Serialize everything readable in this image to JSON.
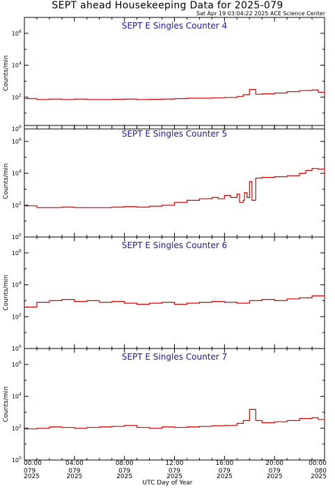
{
  "header": {
    "title": "SEPT ahead Housekeeping Data for 2025-079",
    "timestamp": "Sat Apr 19 03:04:22 2025 ACE Science Center"
  },
  "colors": {
    "series": "#d40000",
    "panel_title": "#1a1a9c",
    "axis": "#000000"
  },
  "chart_data": {
    "type": "line",
    "step": true,
    "xlabel": "UTC Day of Year",
    "ylabel": "Counts/min",
    "x_unit": "hours",
    "xlim": [
      0,
      24
    ],
    "yscale": "log",
    "ylim": [
      1,
      10000000
    ],
    "yticks": [
      {
        "value": 1,
        "base": "10",
        "exp": "0"
      },
      {
        "value": 100,
        "base": "10",
        "exp": "2"
      },
      {
        "value": 10000,
        "base": "10",
        "exp": "4"
      },
      {
        "value": 1000000,
        "base": "10",
        "exp": "6"
      }
    ],
    "xticks": [
      {
        "value": 0,
        "time": "00:00",
        "doy": "079",
        "year": "2025"
      },
      {
        "value": 4,
        "time": "04:00",
        "doy": "079",
        "year": "2025"
      },
      {
        "value": 8,
        "time": "08:00",
        "doy": "079",
        "year": "2025"
      },
      {
        "value": 12,
        "time": "12:00",
        "doy": "079",
        "year": "2025"
      },
      {
        "value": 16,
        "time": "16:00",
        "doy": "079",
        "year": "2025"
      },
      {
        "value": 20,
        "time": "20:00",
        "doy": "079",
        "year": "2025"
      },
      {
        "value": 24,
        "time": "00:00",
        "doy": "080",
        "year": "2025"
      }
    ],
    "panels": [
      {
        "title": "SEPT E Singles Counter 4",
        "x": [
          0,
          1,
          2,
          3,
          4,
          5,
          6,
          7,
          8,
          9,
          10,
          11,
          12,
          13,
          14,
          15,
          16,
          17,
          17.5,
          18,
          18.5,
          19,
          20,
          21,
          22,
          23,
          23.5,
          24
        ],
        "y": [
          80,
          70,
          75,
          70,
          75,
          70,
          70,
          72,
          75,
          70,
          72,
          75,
          80,
          85,
          85,
          90,
          95,
          110,
          140,
          300,
          150,
          160,
          180,
          220,
          260,
          280,
          200,
          130
        ]
      },
      {
        "title": "SEPT E Singles Counter 5",
        "x": [
          0,
          1,
          2,
          3,
          4,
          5,
          6,
          7,
          8,
          9,
          10,
          11,
          12,
          13,
          14,
          15,
          15.5,
          16,
          16.5,
          17,
          17.2,
          17.5,
          17.6,
          17.8,
          18,
          18.2,
          18.5,
          19,
          20,
          21,
          22,
          22.5,
          23,
          23.5,
          24
        ],
        "y": [
          90,
          70,
          70,
          75,
          70,
          70,
          70,
          75,
          80,
          75,
          85,
          100,
          150,
          200,
          250,
          300,
          250,
          400,
          300,
          500,
          150,
          200,
          600,
          300,
          3000,
          200,
          5000,
          5500,
          6000,
          7000,
          10000,
          15000,
          20000,
          18000,
          8000
        ]
      },
      {
        "title": "SEPT E Singles Counter 6",
        "x": [
          0,
          1,
          2,
          3,
          4,
          5,
          6,
          7,
          8,
          9,
          10,
          11,
          12,
          13,
          14,
          15,
          16,
          17,
          18,
          19,
          20,
          21,
          22,
          23,
          24
        ],
        "y": [
          400,
          800,
          1000,
          1200,
          900,
          1000,
          800,
          900,
          700,
          600,
          700,
          800,
          600,
          700,
          800,
          900,
          800,
          700,
          1000,
          1200,
          1000,
          1300,
          1500,
          2000,
          1500
        ]
      },
      {
        "title": "SEPT E Singles Counter 7",
        "x": [
          0,
          1,
          2,
          3,
          4,
          5,
          6,
          7,
          8,
          9,
          10,
          11,
          12,
          13,
          14,
          15,
          16,
          17,
          17.5,
          18,
          18.5,
          19,
          20,
          21,
          22,
          23,
          23.5,
          24
        ],
        "y": [
          90,
          100,
          120,
          110,
          100,
          110,
          120,
          130,
          150,
          110,
          100,
          120,
          110,
          120,
          130,
          140,
          150,
          200,
          300,
          1500,
          300,
          220,
          250,
          300,
          400,
          450,
          350,
          250
        ]
      }
    ]
  }
}
